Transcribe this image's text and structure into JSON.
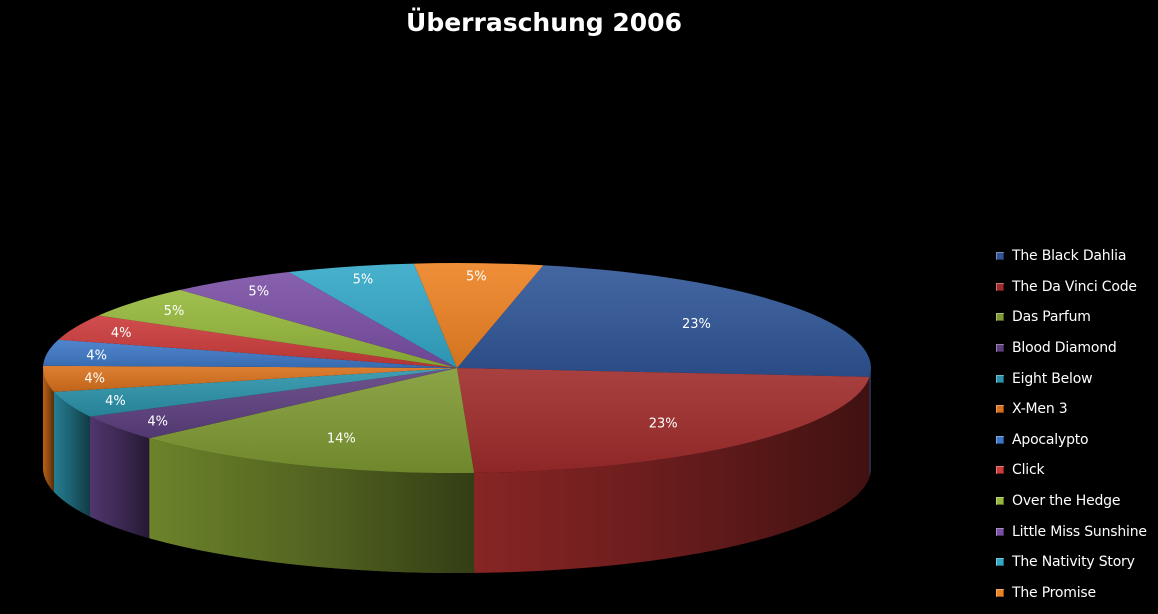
{
  "chart_data": {
    "type": "pie",
    "title": "Überraschung 2006",
    "legend_position": "right",
    "slices": [
      {
        "name": "The Black Dahlia",
        "value": 23,
        "label": "23%",
        "color": "#2f5597"
      },
      {
        "name": "The Da Vinci Code",
        "value": 23,
        "label": "23%",
        "color": "#a02b2b"
      },
      {
        "name": "Das Parfum",
        "value": 14,
        "label": "14%",
        "color": "#7f9a32"
      },
      {
        "name": "Blood Diamond",
        "value": 4,
        "label": "4%",
        "color": "#5d3f80"
      },
      {
        "name": "Eight Below",
        "value": 4,
        "label": "4%",
        "color": "#2b93aa"
      },
      {
        "name": "X-Men 3",
        "value": 4,
        "label": "4%",
        "color": "#d9711c"
      },
      {
        "name": "Apocalypto",
        "value": 4,
        "label": "4%",
        "color": "#3d78c8"
      },
      {
        "name": "Click",
        "value": 4,
        "label": "4%",
        "color": "#cc3a3a"
      },
      {
        "name": "Over the Hedge",
        "value": 5,
        "label": "5%",
        "color": "#95b83b"
      },
      {
        "name": "Little Miss Sunshine",
        "value": 5,
        "label": "5%",
        "color": "#7a4fa5"
      },
      {
        "name": "The Nativity Story",
        "value": 5,
        "label": "5%",
        "color": "#33a8c7"
      },
      {
        "name": "The Promise",
        "value": 5,
        "label": "5%",
        "color": "#ee8222"
      }
    ]
  }
}
